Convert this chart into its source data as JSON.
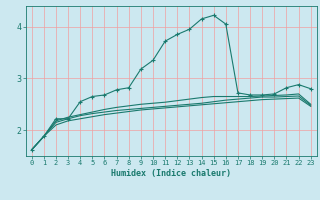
{
  "xlabel": "Humidex (Indice chaleur)",
  "ylabel": "",
  "xlim": [
    -0.5,
    23.5
  ],
  "ylim": [
    1.5,
    4.4
  ],
  "yticks": [
    2,
    3,
    4
  ],
  "xticks": [
    0,
    1,
    2,
    3,
    4,
    5,
    6,
    7,
    8,
    9,
    10,
    11,
    12,
    13,
    14,
    15,
    16,
    17,
    18,
    19,
    20,
    21,
    22,
    23
  ],
  "bg_color": "#cce8f0",
  "line_color": "#1a7a6e",
  "grid_color": "#f0a0a0",
  "line_with_markers_x": [
    0,
    1,
    2,
    3,
    4,
    5,
    6,
    7,
    8,
    9,
    10,
    11,
    12,
    13,
    14,
    15,
    16,
    17,
    18,
    19,
    20,
    21,
    22,
    23
  ],
  "line_with_markers_y": [
    1.62,
    1.88,
    2.22,
    2.22,
    2.55,
    2.65,
    2.68,
    2.78,
    2.82,
    3.18,
    3.35,
    3.72,
    3.85,
    3.95,
    4.15,
    4.22,
    4.05,
    2.72,
    2.68,
    2.68,
    2.7,
    2.82,
    2.88,
    2.8
  ],
  "line2_x": [
    0,
    1,
    2,
    3,
    4,
    5,
    6,
    7,
    8,
    9,
    10,
    11,
    12,
    13,
    14,
    15,
    16,
    17,
    18,
    19,
    20,
    21,
    22,
    23
  ],
  "line2_y": [
    1.62,
    1.88,
    2.15,
    2.22,
    2.28,
    2.32,
    2.35,
    2.38,
    2.4,
    2.42,
    2.44,
    2.46,
    2.48,
    2.5,
    2.52,
    2.55,
    2.58,
    2.6,
    2.62,
    2.64,
    2.64,
    2.65,
    2.66,
    2.48
  ],
  "line3_x": [
    0,
    1,
    2,
    3,
    4,
    5,
    6,
    7,
    8,
    9,
    10,
    11,
    12,
    13,
    14,
    15,
    16,
    17,
    18,
    19,
    20,
    21,
    22,
    23
  ],
  "line3_y": [
    1.62,
    1.88,
    2.18,
    2.25,
    2.3,
    2.35,
    2.4,
    2.44,
    2.47,
    2.5,
    2.52,
    2.54,
    2.57,
    2.6,
    2.63,
    2.65,
    2.65,
    2.65,
    2.65,
    2.66,
    2.67,
    2.68,
    2.7,
    2.5
  ],
  "line4_x": [
    0,
    1,
    2,
    3,
    4,
    5,
    6,
    7,
    8,
    9,
    10,
    11,
    12,
    13,
    14,
    15,
    16,
    17,
    18,
    19,
    20,
    21,
    22,
    23
  ],
  "line4_y": [
    1.62,
    1.88,
    2.1,
    2.18,
    2.22,
    2.26,
    2.3,
    2.33,
    2.36,
    2.39,
    2.41,
    2.43,
    2.45,
    2.47,
    2.49,
    2.51,
    2.53,
    2.55,
    2.57,
    2.59,
    2.6,
    2.61,
    2.62,
    2.46
  ]
}
